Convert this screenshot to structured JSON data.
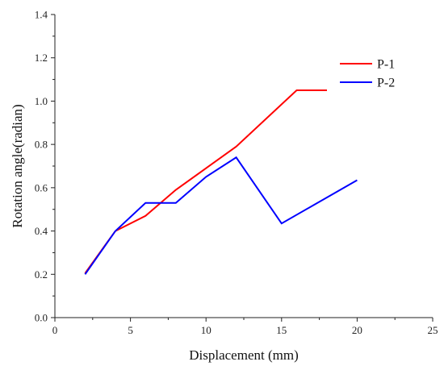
{
  "chart_data": {
    "type": "line",
    "xlabel": "Displacement (mm)",
    "ylabel": "Rotation angle(radian)",
    "xlim": [
      0,
      25
    ],
    "ylim": [
      0.0,
      1.4
    ],
    "xticks": [
      0,
      5,
      10,
      15,
      20,
      25
    ],
    "yticks": [
      0.0,
      0.2,
      0.4,
      0.6,
      0.8,
      1.0,
      1.2,
      1.4
    ],
    "xtick_labels": [
      "0",
      "5",
      "10",
      "15",
      "20",
      "25"
    ],
    "ytick_labels": [
      "0.0",
      "0.2",
      "0.4",
      "0.6",
      "0.8",
      "1.0",
      "1.2",
      "1.4"
    ],
    "grid": false,
    "legend_position": "top-right",
    "series": [
      {
        "name": "P-1",
        "color": "#ff0000",
        "x": [
          2,
          4,
          6,
          8,
          10,
          12,
          16,
          18
        ],
        "y": [
          0.205,
          0.4,
          0.47,
          0.59,
          0.69,
          0.79,
          1.05,
          1.05
        ]
      },
      {
        "name": "P-2",
        "color": "#0000ff",
        "x": [
          2,
          4,
          6,
          8,
          10,
          12,
          15,
          20
        ],
        "y": [
          0.2,
          0.4,
          0.53,
          0.53,
          0.65,
          0.74,
          0.435,
          0.635
        ]
      }
    ]
  }
}
